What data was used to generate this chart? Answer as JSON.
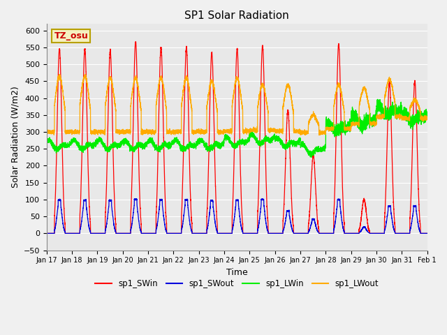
{
  "title": "SP1 Solar Radiation",
  "xlabel": "Time",
  "ylabel": "Solar Radiation (W/m2)",
  "ylim": [
    -50,
    620
  ],
  "yticks": [
    -50,
    0,
    50,
    100,
    150,
    200,
    250,
    300,
    350,
    400,
    450,
    500,
    550,
    600
  ],
  "colors": {
    "SWin": "#ff0000",
    "SWout": "#0000dd",
    "LWin": "#00ee00",
    "LWout": "#ffaa00"
  },
  "legend_labels": [
    "sp1_SWin",
    "sp1_SWout",
    "sp1_LWin",
    "sp1_LWout"
  ],
  "annotation_text": "TZ_osu",
  "annotation_color": "#cc0000",
  "annotation_bg": "#f5f0c0",
  "annotation_border": "#b8a000",
  "plot_bg": "#e8e8e8",
  "fig_bg": "#f0f0f0",
  "grid_color": "#ffffff",
  "n_days": 15,
  "points_per_day": 480,
  "sw_peaks": [
    545,
    545,
    540,
    565,
    550,
    550,
    535,
    545,
    555,
    365,
    230,
    560,
    100,
    445,
    450
  ],
  "lwin_base": [
    268,
    268,
    268,
    268,
    268,
    268,
    268,
    278,
    285,
    275,
    255,
    315,
    330,
    355,
    330
  ],
  "lwout_base": [
    300,
    300,
    300,
    300,
    300,
    300,
    300,
    302,
    305,
    302,
    298,
    310,
    325,
    345,
    340
  ],
  "lwout_day_peak": [
    465,
    465,
    460,
    460,
    460,
    460,
    450,
    460,
    440,
    440,
    350,
    440,
    430,
    455,
    395
  ]
}
